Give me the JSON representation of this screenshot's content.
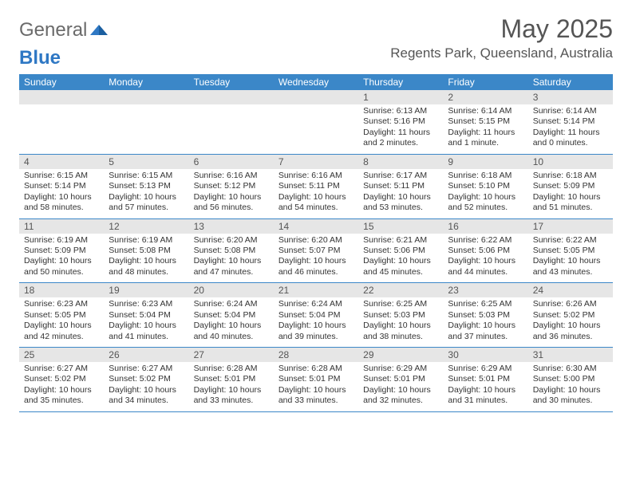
{
  "logo": {
    "text1": "General",
    "text2": "Blue"
  },
  "title": "May 2025",
  "location": "Regents Park, Queensland, Australia",
  "colors": {
    "header_bg": "#3b87c8",
    "header_text": "#ffffff",
    "band_bg": "#e6e6e6",
    "rule": "#3b87c8",
    "text": "#333333",
    "muted": "#555555"
  },
  "days_of_week": [
    "Sunday",
    "Monday",
    "Tuesday",
    "Wednesday",
    "Thursday",
    "Friday",
    "Saturday"
  ],
  "weeks": [
    [
      {
        "n": "",
        "sr": "",
        "ss": "",
        "dl": ""
      },
      {
        "n": "",
        "sr": "",
        "ss": "",
        "dl": ""
      },
      {
        "n": "",
        "sr": "",
        "ss": "",
        "dl": ""
      },
      {
        "n": "",
        "sr": "",
        "ss": "",
        "dl": ""
      },
      {
        "n": "1",
        "sr": "Sunrise: 6:13 AM",
        "ss": "Sunset: 5:16 PM",
        "dl": "Daylight: 11 hours and 2 minutes."
      },
      {
        "n": "2",
        "sr": "Sunrise: 6:14 AM",
        "ss": "Sunset: 5:15 PM",
        "dl": "Daylight: 11 hours and 1 minute."
      },
      {
        "n": "3",
        "sr": "Sunrise: 6:14 AM",
        "ss": "Sunset: 5:14 PM",
        "dl": "Daylight: 11 hours and 0 minutes."
      }
    ],
    [
      {
        "n": "4",
        "sr": "Sunrise: 6:15 AM",
        "ss": "Sunset: 5:14 PM",
        "dl": "Daylight: 10 hours and 58 minutes."
      },
      {
        "n": "5",
        "sr": "Sunrise: 6:15 AM",
        "ss": "Sunset: 5:13 PM",
        "dl": "Daylight: 10 hours and 57 minutes."
      },
      {
        "n": "6",
        "sr": "Sunrise: 6:16 AM",
        "ss": "Sunset: 5:12 PM",
        "dl": "Daylight: 10 hours and 56 minutes."
      },
      {
        "n": "7",
        "sr": "Sunrise: 6:16 AM",
        "ss": "Sunset: 5:11 PM",
        "dl": "Daylight: 10 hours and 54 minutes."
      },
      {
        "n": "8",
        "sr": "Sunrise: 6:17 AM",
        "ss": "Sunset: 5:11 PM",
        "dl": "Daylight: 10 hours and 53 minutes."
      },
      {
        "n": "9",
        "sr": "Sunrise: 6:18 AM",
        "ss": "Sunset: 5:10 PM",
        "dl": "Daylight: 10 hours and 52 minutes."
      },
      {
        "n": "10",
        "sr": "Sunrise: 6:18 AM",
        "ss": "Sunset: 5:09 PM",
        "dl": "Daylight: 10 hours and 51 minutes."
      }
    ],
    [
      {
        "n": "11",
        "sr": "Sunrise: 6:19 AM",
        "ss": "Sunset: 5:09 PM",
        "dl": "Daylight: 10 hours and 50 minutes."
      },
      {
        "n": "12",
        "sr": "Sunrise: 6:19 AM",
        "ss": "Sunset: 5:08 PM",
        "dl": "Daylight: 10 hours and 48 minutes."
      },
      {
        "n": "13",
        "sr": "Sunrise: 6:20 AM",
        "ss": "Sunset: 5:08 PM",
        "dl": "Daylight: 10 hours and 47 minutes."
      },
      {
        "n": "14",
        "sr": "Sunrise: 6:20 AM",
        "ss": "Sunset: 5:07 PM",
        "dl": "Daylight: 10 hours and 46 minutes."
      },
      {
        "n": "15",
        "sr": "Sunrise: 6:21 AM",
        "ss": "Sunset: 5:06 PM",
        "dl": "Daylight: 10 hours and 45 minutes."
      },
      {
        "n": "16",
        "sr": "Sunrise: 6:22 AM",
        "ss": "Sunset: 5:06 PM",
        "dl": "Daylight: 10 hours and 44 minutes."
      },
      {
        "n": "17",
        "sr": "Sunrise: 6:22 AM",
        "ss": "Sunset: 5:05 PM",
        "dl": "Daylight: 10 hours and 43 minutes."
      }
    ],
    [
      {
        "n": "18",
        "sr": "Sunrise: 6:23 AM",
        "ss": "Sunset: 5:05 PM",
        "dl": "Daylight: 10 hours and 42 minutes."
      },
      {
        "n": "19",
        "sr": "Sunrise: 6:23 AM",
        "ss": "Sunset: 5:04 PM",
        "dl": "Daylight: 10 hours and 41 minutes."
      },
      {
        "n": "20",
        "sr": "Sunrise: 6:24 AM",
        "ss": "Sunset: 5:04 PM",
        "dl": "Daylight: 10 hours and 40 minutes."
      },
      {
        "n": "21",
        "sr": "Sunrise: 6:24 AM",
        "ss": "Sunset: 5:04 PM",
        "dl": "Daylight: 10 hours and 39 minutes."
      },
      {
        "n": "22",
        "sr": "Sunrise: 6:25 AM",
        "ss": "Sunset: 5:03 PM",
        "dl": "Daylight: 10 hours and 38 minutes."
      },
      {
        "n": "23",
        "sr": "Sunrise: 6:25 AM",
        "ss": "Sunset: 5:03 PM",
        "dl": "Daylight: 10 hours and 37 minutes."
      },
      {
        "n": "24",
        "sr": "Sunrise: 6:26 AM",
        "ss": "Sunset: 5:02 PM",
        "dl": "Daylight: 10 hours and 36 minutes."
      }
    ],
    [
      {
        "n": "25",
        "sr": "Sunrise: 6:27 AM",
        "ss": "Sunset: 5:02 PM",
        "dl": "Daylight: 10 hours and 35 minutes."
      },
      {
        "n": "26",
        "sr": "Sunrise: 6:27 AM",
        "ss": "Sunset: 5:02 PM",
        "dl": "Daylight: 10 hours and 34 minutes."
      },
      {
        "n": "27",
        "sr": "Sunrise: 6:28 AM",
        "ss": "Sunset: 5:01 PM",
        "dl": "Daylight: 10 hours and 33 minutes."
      },
      {
        "n": "28",
        "sr": "Sunrise: 6:28 AM",
        "ss": "Sunset: 5:01 PM",
        "dl": "Daylight: 10 hours and 33 minutes."
      },
      {
        "n": "29",
        "sr": "Sunrise: 6:29 AM",
        "ss": "Sunset: 5:01 PM",
        "dl": "Daylight: 10 hours and 32 minutes."
      },
      {
        "n": "30",
        "sr": "Sunrise: 6:29 AM",
        "ss": "Sunset: 5:01 PM",
        "dl": "Daylight: 10 hours and 31 minutes."
      },
      {
        "n": "31",
        "sr": "Sunrise: 6:30 AM",
        "ss": "Sunset: 5:00 PM",
        "dl": "Daylight: 10 hours and 30 minutes."
      }
    ]
  ]
}
